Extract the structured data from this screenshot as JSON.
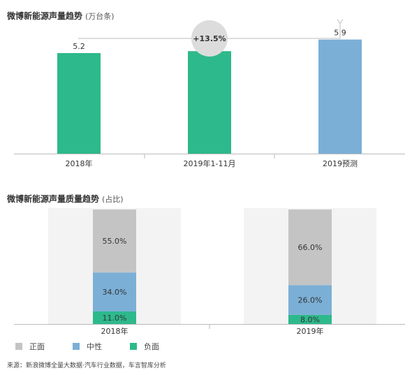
{
  "colors": {
    "green": "#2db98c",
    "blue": "#7bafd6",
    "gray": "#c4c4c4",
    "axis": "#bbbbbb",
    "badge": "#dcdcdc"
  },
  "chart_data": [
    {
      "type": "bar",
      "title": "微博新能源声量趋势",
      "subtitle": "(万台条)",
      "categories": [
        "2018年",
        "2019年1-11月",
        "2019预测"
      ],
      "values": [
        5.2,
        5.3,
        5.9
      ],
      "bar_colors": [
        "green",
        "green",
        "blue"
      ],
      "data_labels": [
        "5.2",
        "5.3",
        "5.9"
      ],
      "ylim": [
        0,
        6.5
      ],
      "grid": false,
      "annotation": {
        "label": "+13.5%",
        "from": "2018年",
        "to": "2019预测"
      }
    },
    {
      "type": "bar",
      "stacked": true,
      "title": "微博新能源声量质量趋势",
      "subtitle": "(占比)",
      "categories": [
        "2018年",
        "2019年"
      ],
      "series": [
        {
          "name": "负面",
          "color": "green",
          "values": [
            11.0,
            8.0
          ],
          "labels": [
            "11.0%",
            "8.0%"
          ]
        },
        {
          "name": "中性",
          "color": "blue",
          "values": [
            34.0,
            26.0
          ],
          "labels": [
            "34.0%",
            "26.0%"
          ]
        },
        {
          "name": "正面",
          "color": "gray",
          "values": [
            55.0,
            66.0
          ],
          "labels": [
            "55.0%",
            "66.0%"
          ]
        }
      ],
      "ylim": [
        0,
        100
      ],
      "grid": false,
      "legend": {
        "placement": "bottom-left",
        "order": [
          "正面",
          "中性",
          "负面"
        ]
      }
    }
  ],
  "legend": [
    {
      "label": "正面",
      "color": "gray"
    },
    {
      "label": "中性",
      "color": "blue"
    },
    {
      "label": "负面",
      "color": "green"
    }
  ],
  "source_note": "来源：新浪微博全量大数据·汽车行业数据，车言智库分析"
}
